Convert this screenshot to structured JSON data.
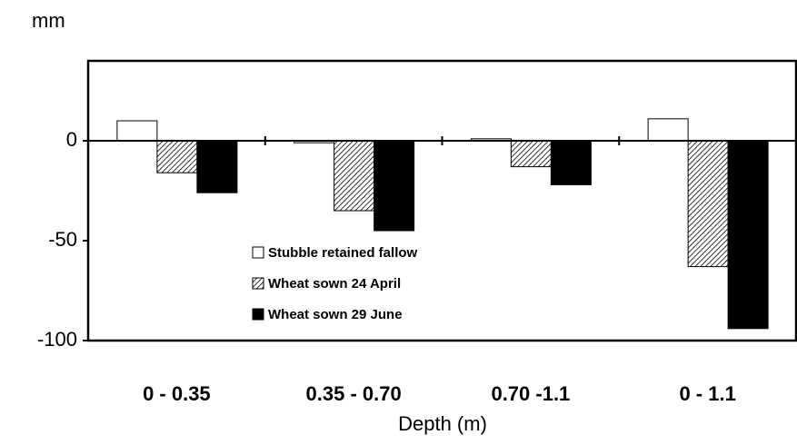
{
  "chart_data": {
    "type": "bar",
    "y_unit_label": "mm",
    "x_label": "Depth (m)",
    "categories": [
      "0 - 0.35",
      "0.35 - 0.70",
      "0.70 -1.1",
      "0 - 1.1"
    ],
    "series": [
      {
        "name": "Stubble retained fallow",
        "color": "#ffffff",
        "values": [
          10,
          -1,
          1,
          11
        ]
      },
      {
        "name": "Wheat sown 24 April",
        "color": "hatch",
        "values": [
          -16,
          -35,
          -13,
          -63
        ]
      },
      {
        "name": "Wheat sown 29 June",
        "color": "#000000",
        "values": [
          -26,
          -45,
          -22,
          -94
        ]
      }
    ],
    "ylim": [
      -100,
      40
    ],
    "yticks": [
      -100,
      -50,
      0
    ],
    "grid": false
  }
}
